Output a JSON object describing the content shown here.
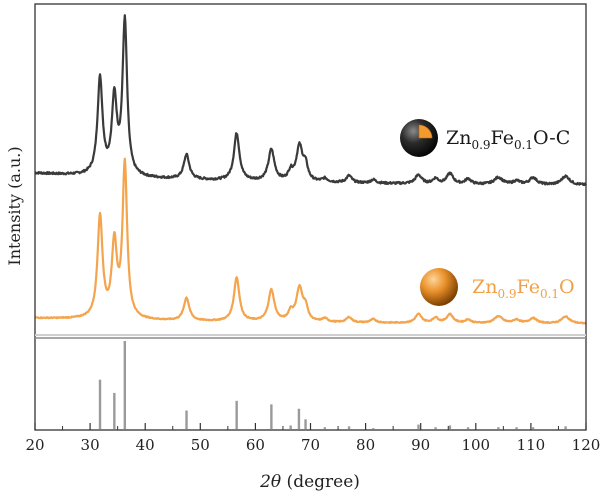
{
  "chart_data": {
    "type": "line",
    "xlabel_italic": "2θ",
    "xlabel_rest": " (degree)",
    "ylabel": "Intensity (a.u.)",
    "xlim": [
      20,
      120
    ],
    "x_ticks": [
      20,
      30,
      40,
      50,
      60,
      70,
      80,
      90,
      100,
      110,
      120
    ],
    "series": [
      {
        "name_parts": [
          {
            "t": "Zn",
            "sub": false
          },
          {
            "t": "0.9",
            "sub": true
          },
          {
            "t": "Fe",
            "sub": false
          },
          {
            "t": "0.1",
            "sub": true
          },
          {
            "t": "O-C",
            "sub": false
          }
        ],
        "color": "#3a3a3a",
        "marker": "dark-sphere-with-orange-wedge",
        "baseline": 0.075,
        "noise": 0.012,
        "peaks": [
          {
            "x": 31.8,
            "h": 0.55,
            "w": 0.55
          },
          {
            "x": 34.4,
            "h": 0.43,
            "w": 0.55
          },
          {
            "x": 36.3,
            "h": 0.88,
            "w": 0.5
          },
          {
            "x": 47.5,
            "h": 0.14,
            "w": 0.6
          },
          {
            "x": 56.6,
            "h": 0.27,
            "w": 0.6
          },
          {
            "x": 62.9,
            "h": 0.18,
            "w": 0.65
          },
          {
            "x": 66.4,
            "h": 0.05,
            "w": 0.5
          },
          {
            "x": 68.0,
            "h": 0.2,
            "w": 0.7
          },
          {
            "x": 69.1,
            "h": 0.08,
            "w": 0.5
          },
          {
            "x": 72.6,
            "h": 0.02,
            "w": 0.6
          },
          {
            "x": 77.0,
            "h": 0.04,
            "w": 0.6
          },
          {
            "x": 81.4,
            "h": 0.02,
            "w": 0.6
          },
          {
            "x": 89.6,
            "h": 0.05,
            "w": 0.7
          },
          {
            "x": 92.7,
            "h": 0.03,
            "w": 0.6
          },
          {
            "x": 95.3,
            "h": 0.06,
            "w": 0.7
          },
          {
            "x": 98.6,
            "h": 0.03,
            "w": 0.6
          },
          {
            "x": 104.1,
            "h": 0.04,
            "w": 0.9
          },
          {
            "x": 107.4,
            "h": 0.02,
            "w": 0.7
          },
          {
            "x": 110.4,
            "h": 0.04,
            "w": 0.8
          },
          {
            "x": 116.3,
            "h": 0.05,
            "w": 0.9
          }
        ]
      },
      {
        "name_parts": [
          {
            "t": "Zn",
            "sub": false
          },
          {
            "t": "0.9",
            "sub": true
          },
          {
            "t": "Fe",
            "sub": false
          },
          {
            "t": "0.1",
            "sub": true
          },
          {
            "t": "O",
            "sub": false
          }
        ],
        "color": "#f4a44c",
        "marker": "orange-sphere",
        "baseline": 0.035,
        "noise": 0.006,
        "peaks": [
          {
            "x": 31.8,
            "h": 0.58,
            "w": 0.55
          },
          {
            "x": 34.4,
            "h": 0.42,
            "w": 0.55
          },
          {
            "x": 36.3,
            "h": 0.88,
            "w": 0.5
          },
          {
            "x": 47.5,
            "h": 0.13,
            "w": 0.6
          },
          {
            "x": 56.6,
            "h": 0.25,
            "w": 0.6
          },
          {
            "x": 62.9,
            "h": 0.18,
            "w": 0.65
          },
          {
            "x": 66.4,
            "h": 0.05,
            "w": 0.5
          },
          {
            "x": 68.0,
            "h": 0.19,
            "w": 0.7
          },
          {
            "x": 69.1,
            "h": 0.07,
            "w": 0.5
          },
          {
            "x": 72.6,
            "h": 0.02,
            "w": 0.6
          },
          {
            "x": 77.0,
            "h": 0.03,
            "w": 0.6
          },
          {
            "x": 81.4,
            "h": 0.02,
            "w": 0.6
          },
          {
            "x": 89.6,
            "h": 0.05,
            "w": 0.7
          },
          {
            "x": 92.7,
            "h": 0.03,
            "w": 0.6
          },
          {
            "x": 95.3,
            "h": 0.05,
            "w": 0.7
          },
          {
            "x": 98.6,
            "h": 0.02,
            "w": 0.6
          },
          {
            "x": 104.1,
            "h": 0.04,
            "w": 0.9
          },
          {
            "x": 107.4,
            "h": 0.02,
            "w": 0.7
          },
          {
            "x": 110.4,
            "h": 0.03,
            "w": 0.8
          },
          {
            "x": 116.3,
            "h": 0.04,
            "w": 0.9
          }
        ]
      }
    ],
    "reference_pattern": {
      "color": "#9a9a9a",
      "lines": [
        {
          "x": 31.8,
          "h": 0.56
        },
        {
          "x": 34.4,
          "h": 0.41
        },
        {
          "x": 36.3,
          "h": 1.0
        },
        {
          "x": 47.5,
          "h": 0.21
        },
        {
          "x": 56.6,
          "h": 0.32
        },
        {
          "x": 62.9,
          "h": 0.28
        },
        {
          "x": 66.4,
          "h": 0.04
        },
        {
          "x": 67.9,
          "h": 0.23
        },
        {
          "x": 69.1,
          "h": 0.11
        },
        {
          "x": 72.6,
          "h": 0.02
        },
        {
          "x": 77.0,
          "h": 0.03
        },
        {
          "x": 81.4,
          "h": 0.01
        },
        {
          "x": 89.6,
          "h": 0.05
        },
        {
          "x": 92.7,
          "h": 0.02
        },
        {
          "x": 95.3,
          "h": 0.04
        },
        {
          "x": 98.6,
          "h": 0.02
        },
        {
          "x": 104.1,
          "h": 0.02
        },
        {
          "x": 107.4,
          "h": 0.02
        },
        {
          "x": 110.4,
          "h": 0.02
        },
        {
          "x": 116.3,
          "h": 0.03
        }
      ]
    },
    "grid": false
  }
}
